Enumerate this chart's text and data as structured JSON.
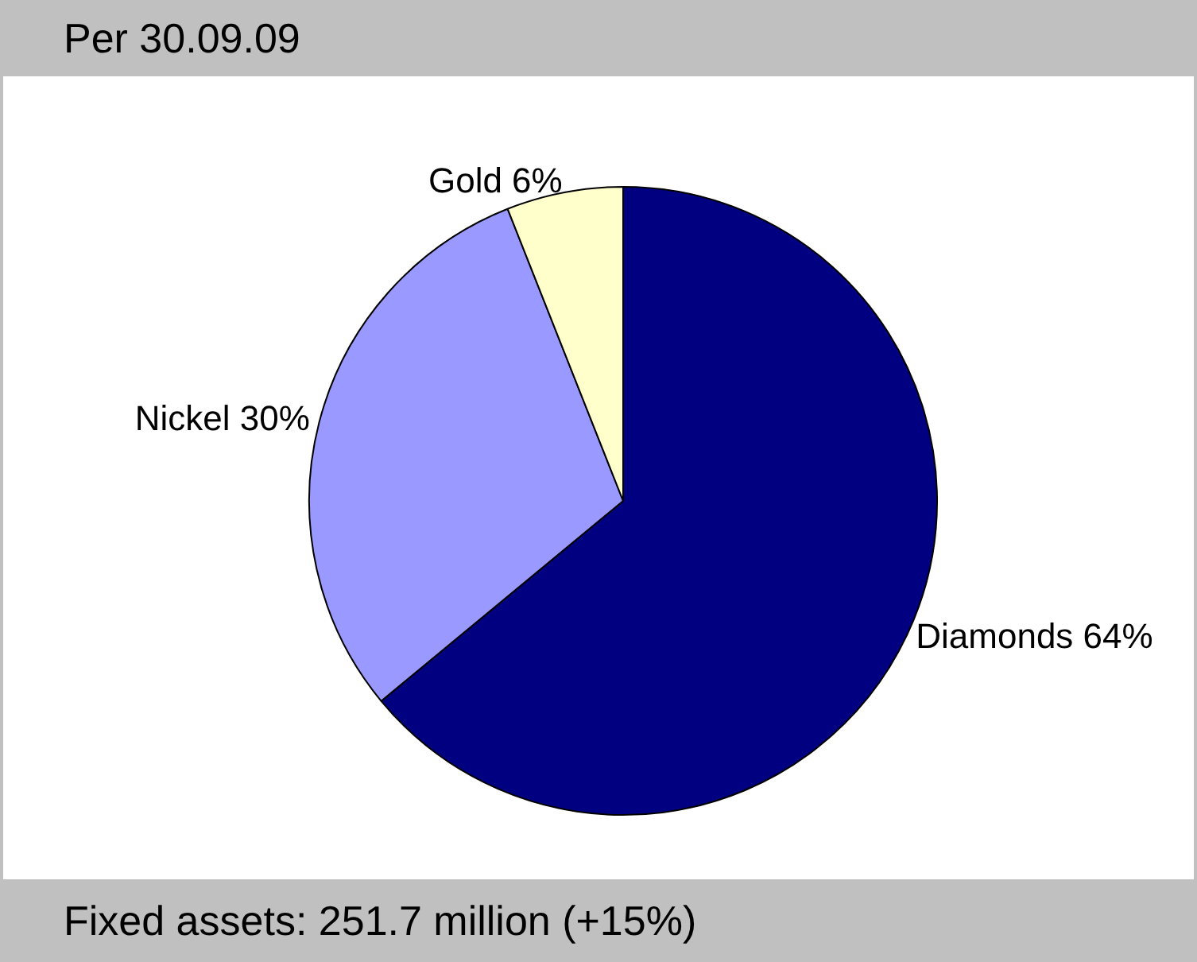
{
  "chart_data": {
    "type": "pie",
    "title": "Per 30.09.09",
    "categories": [
      "Diamonds",
      "Nickel",
      "Gold"
    ],
    "values": [
      64,
      30,
      6
    ],
    "colors": [
      "#000080",
      "#9999ff",
      "#ffffcc"
    ],
    "value_labels": [
      "64%",
      "30%",
      "6%"
    ],
    "annotations": [
      "Fixed assets: 251.7 million (+15%)"
    ],
    "legend": false
  }
}
